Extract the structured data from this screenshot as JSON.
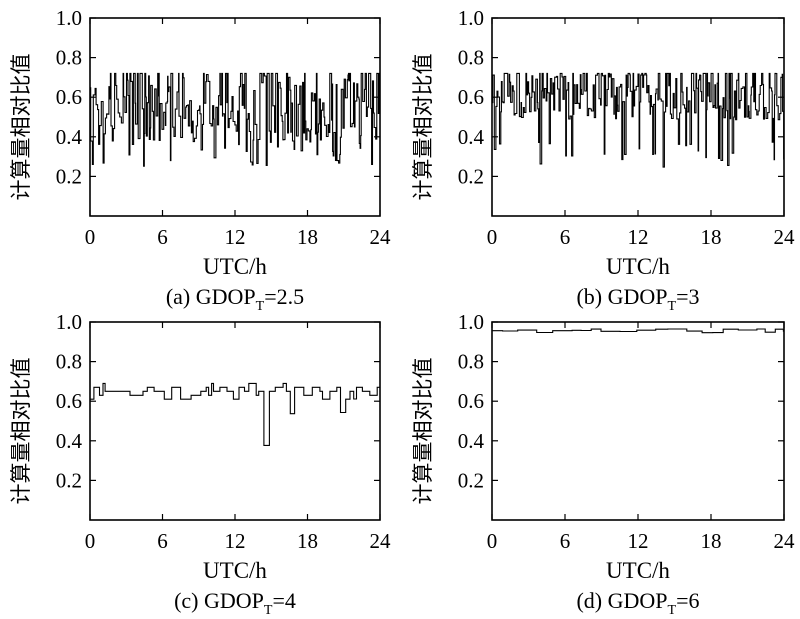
{
  "chart_data": [
    {
      "id": "a",
      "type": "line",
      "caption_prefix": "(a) GDOP",
      "caption_sub": "T",
      "caption_suffix": "=2.5",
      "xlabel": "UTC/h",
      "ylabel": "计算量相对比值",
      "xlim": [
        0,
        24
      ],
      "ylim": [
        0,
        1.0
      ],
      "xticks": [
        "0",
        "6",
        "12",
        "18",
        "24"
      ],
      "yticks": [
        "0.2",
        "0.4",
        "0.6",
        "0.8",
        "1.0"
      ],
      "base": 0.62,
      "step_low": 0.25,
      "step_high": 0.72,
      "noise": "high"
    },
    {
      "id": "b",
      "type": "line",
      "caption_prefix": "(b) GDOP",
      "caption_sub": "T",
      "caption_suffix": "=3",
      "xlabel": "UTC/h",
      "ylabel": "计算量相对比值",
      "xlim": [
        0,
        24
      ],
      "ylim": [
        0,
        1.0
      ],
      "xticks": [
        "0",
        "6",
        "12",
        "18",
        "24"
      ],
      "yticks": [
        "0.2",
        "0.4",
        "0.6",
        "0.8",
        "1.0"
      ],
      "base": 0.64,
      "step_low": 0.23,
      "step_high": 0.72,
      "noise": "medium"
    },
    {
      "id": "c",
      "type": "line",
      "caption_prefix": "(c) GDOP",
      "caption_sub": "T",
      "caption_suffix": "=4",
      "xlabel": "UTC/h",
      "ylabel": "计算量相对比值",
      "xlim": [
        0,
        24
      ],
      "ylim": [
        0,
        1.0
      ],
      "xticks": [
        "0",
        "6",
        "12",
        "18",
        "24"
      ],
      "yticks": [
        "0.2",
        "0.4",
        "0.6",
        "0.8",
        "1.0"
      ],
      "base": 0.66,
      "step_low": 0.37,
      "step_high": 0.73,
      "noise": "low"
    },
    {
      "id": "d",
      "type": "line",
      "caption_prefix": "(d) GDOP",
      "caption_sub": "T",
      "caption_suffix": "=6",
      "xlabel": "UTC/h",
      "ylabel": "计算量相对比值",
      "xlim": [
        0,
        24
      ],
      "ylim": [
        0,
        1.0
      ],
      "xticks": [
        "0",
        "6",
        "12",
        "18",
        "24"
      ],
      "yticks": [
        "0.2",
        "0.4",
        "0.6",
        "0.8",
        "1.0"
      ],
      "base": 0.955,
      "step_low": 0.94,
      "step_high": 0.965,
      "noise": "flat"
    }
  ]
}
